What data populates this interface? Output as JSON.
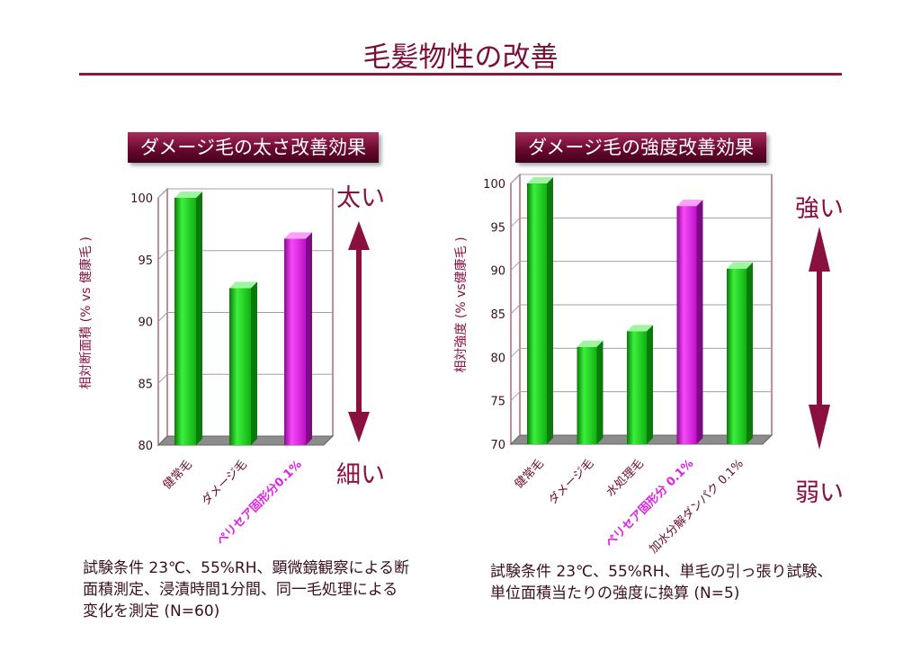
{
  "page": {
    "title": "毛髪物性の改善",
    "colors": {
      "accent": "#8a1040",
      "green": "#1dc41d",
      "magenta": "#e01ee8",
      "title_bg": "#6a0a2e"
    }
  },
  "left_panel": {
    "title": "ダメージ毛の太さ改善効果",
    "arrow_top_label": "太い",
    "arrow_bottom_label": "細い",
    "conditions": [
      "試験条件 23℃、55%RH、顕微鏡観察による断",
      "面積測定、浸漬時間1分間、同一毛処理による",
      "変化を測定 (N=60)"
    ]
  },
  "right_panel": {
    "title": "ダメージ毛の強度改善効果",
    "arrow_top_label": "強い",
    "arrow_bottom_label": "弱い",
    "conditions": [
      "試験条件 23℃、55%RH、単毛の引っ張り試験、",
      "単位面積当たりの強度に換算 (N=5)"
    ]
  },
  "chart_data": [
    {
      "type": "bar",
      "title": "ダメージ毛の太さ改善効果",
      "ylabel": "相対断面積 (% vs 健康毛 )",
      "xlabel": "",
      "categories": [
        "健常毛",
        "ダメージ毛",
        "ペリセア固形分0.1%"
      ],
      "values": [
        100,
        92.7,
        96.7
      ],
      "highlight_index": 2,
      "ylim": [
        80,
        100
      ],
      "yticks": [
        80,
        85,
        90,
        95,
        100
      ],
      "grid": true
    },
    {
      "type": "bar",
      "title": "ダメージ毛の強度改善効果",
      "ylabel": "相対強度 (% vs健康毛 )",
      "xlabel": "",
      "categories": [
        "健常毛",
        "ダメージ毛",
        "水処理毛",
        "ペリセア固形分 0.1%",
        "加水分解ダンパク 0.1%"
      ],
      "values": [
        100,
        81.2,
        83,
        97.4,
        90.2
      ],
      "highlight_index": 3,
      "ylim": [
        70,
        100
      ],
      "yticks": [
        70,
        75,
        80,
        85,
        90,
        95,
        100
      ],
      "grid": true
    }
  ]
}
